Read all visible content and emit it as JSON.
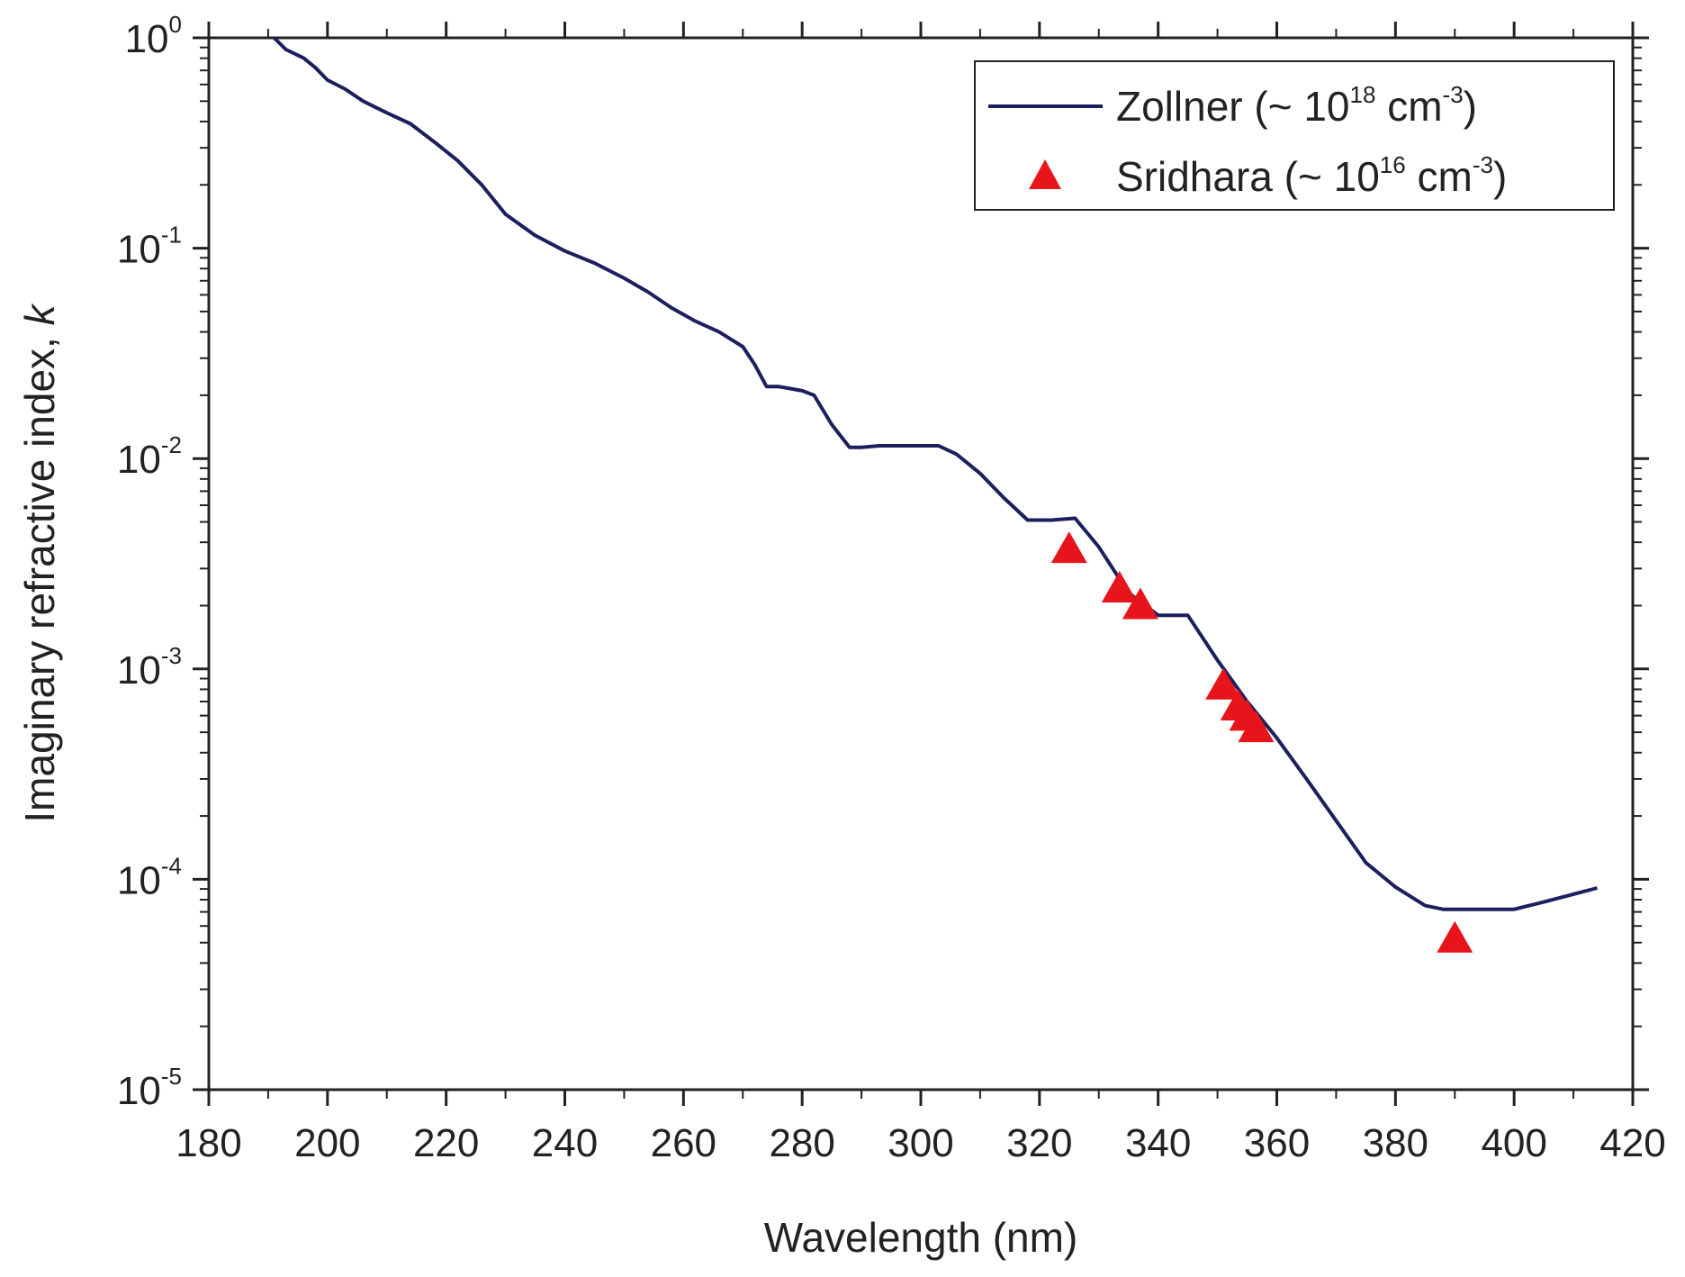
{
  "chart_data": {
    "type": "line",
    "title": "",
    "xlabel": "Wavelength (nm)",
    "ylabel_main": "Imaginary refractive index, ",
    "ylabel_italic": "k",
    "xlim": [
      180,
      420
    ],
    "ylim": [
      1e-05,
      1
    ],
    "yscale": "log",
    "x_ticks": [
      180,
      200,
      220,
      240,
      260,
      280,
      300,
      320,
      340,
      360,
      380,
      400,
      420
    ],
    "x_tick_labels": [
      "180",
      "200",
      "220",
      "240",
      "260",
      "280",
      "300",
      "320",
      "340",
      "360",
      "380",
      "400",
      "420"
    ],
    "y_ticks": [
      {
        "value": 1,
        "base": "10",
        "exp": "0"
      },
      {
        "value": 0.1,
        "base": "10",
        "exp": "-1"
      },
      {
        "value": 0.01,
        "base": "10",
        "exp": "-2"
      },
      {
        "value": 0.001,
        "base": "10",
        "exp": "-3"
      },
      {
        "value": 0.0001,
        "base": "10",
        "exp": "-4"
      },
      {
        "value": 1e-05,
        "base": "10",
        "exp": "-5"
      }
    ],
    "legend_position": "top-right",
    "series": [
      {
        "name": "Zollner",
        "legend_main": "Zollner (~ 10",
        "legend_exp": "18",
        "legend_unit": " cm",
        "legend_unit_exp": "-3",
        "legend_close": ")",
        "kind": "line",
        "color": "#1c1f5e",
        "x": [
          191,
          193,
          196,
          198,
          200,
          203,
          206,
          210,
          214,
          218,
          222,
          226,
          230,
          235,
          240,
          245,
          250,
          254,
          258,
          262,
          266,
          270,
          272,
          274,
          276,
          278,
          280,
          282,
          285,
          288,
          290,
          293,
          297,
          300,
          303,
          306,
          310,
          314,
          318,
          322,
          326,
          330,
          335,
          340,
          345,
          350,
          355,
          360,
          365,
          370,
          375,
          380,
          385,
          388,
          392,
          396,
          400,
          405,
          410,
          414
        ],
        "y": [
          1.0,
          0.88,
          0.8,
          0.72,
          0.63,
          0.57,
          0.5,
          0.44,
          0.39,
          0.32,
          0.26,
          0.2,
          0.145,
          0.115,
          0.097,
          0.085,
          0.072,
          0.062,
          0.052,
          0.045,
          0.04,
          0.034,
          0.028,
          0.022,
          0.022,
          0.0215,
          0.021,
          0.02,
          0.0145,
          0.0113,
          0.0113,
          0.0115,
          0.0115,
          0.0115,
          0.0115,
          0.0105,
          0.0085,
          0.0065,
          0.0051,
          0.0051,
          0.0052,
          0.0038,
          0.0023,
          0.0018,
          0.0018,
          0.0011,
          0.0007,
          0.00047,
          0.0003,
          0.00019,
          0.00012,
          9.2e-05,
          7.5e-05,
          7.2e-05,
          7.2e-05,
          7.2e-05,
          7.2e-05,
          7.8e-05,
          8.5e-05,
          9.1e-05
        ]
      },
      {
        "name": "Sridhara",
        "legend_main": "Sridhara (~ 10",
        "legend_exp": "16",
        "legend_unit": " cm",
        "legend_unit_exp": "-3",
        "legend_close": ")",
        "kind": "scatter",
        "marker": "triangle",
        "color": "#e8141b",
        "x": [
          325,
          333.5,
          337,
          351,
          353.5,
          355,
          356.5,
          390
        ],
        "y": [
          0.0037,
          0.0024,
          0.002,
          0.00083,
          0.00066,
          0.00059,
          0.00052,
          5.2e-05
        ]
      }
    ]
  }
}
